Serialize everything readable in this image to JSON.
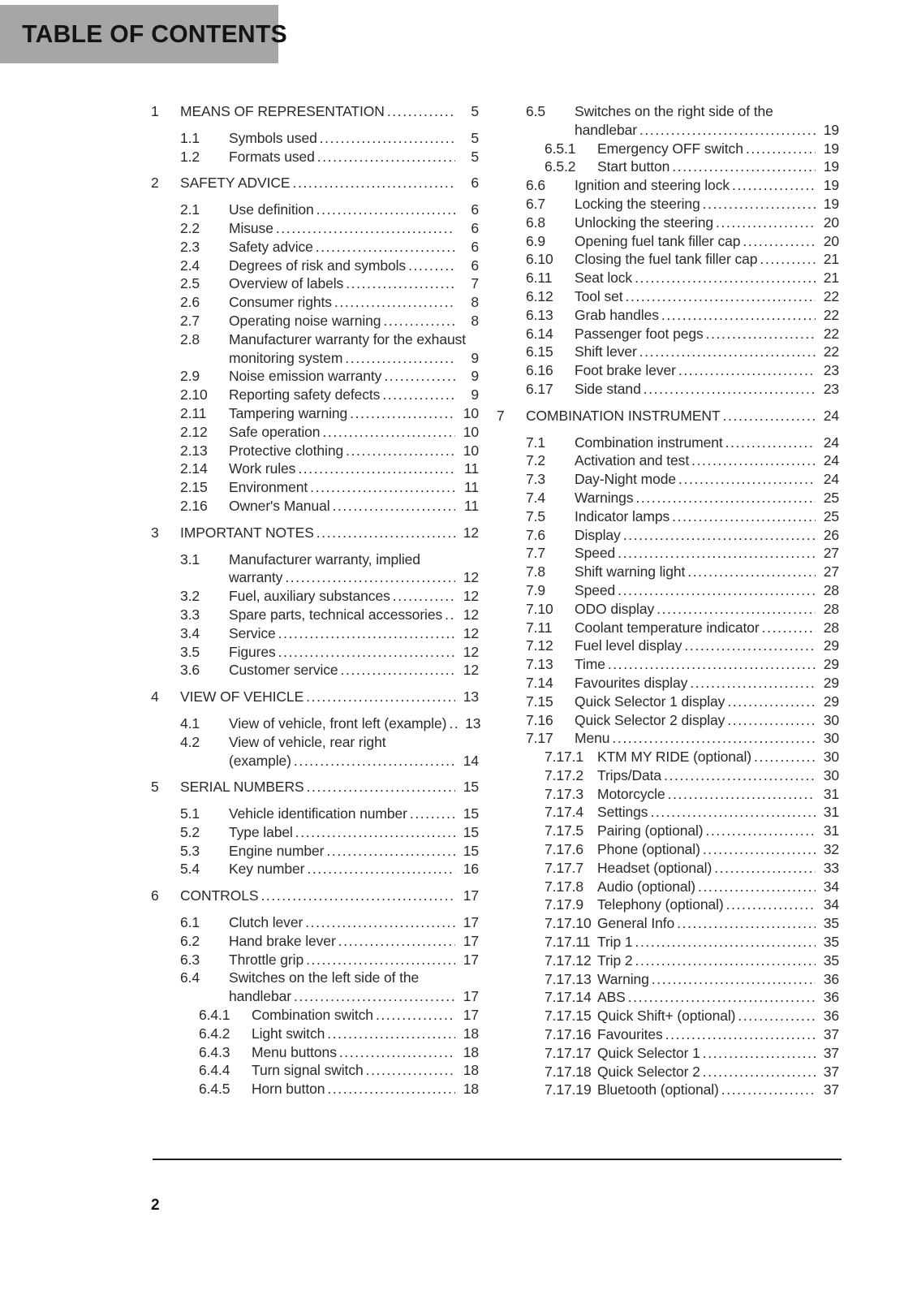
{
  "header": {
    "title": "TABLE OF CONTENTS"
  },
  "footer": {
    "page_number": "2"
  },
  "toc": {
    "columns": [
      {
        "entries": [
          {
            "level": 1,
            "num": "1",
            "lines": [
              "MEANS OF REPRESENTATION"
            ],
            "page": "5"
          },
          {
            "level": 2,
            "num": "1.1",
            "lines": [
              "Symbols used"
            ],
            "page": "5"
          },
          {
            "level": 2,
            "num": "1.2",
            "lines": [
              "Formats used"
            ],
            "page": "5"
          },
          {
            "level": 1,
            "num": "2",
            "lines": [
              "SAFETY ADVICE"
            ],
            "page": "6"
          },
          {
            "level": 2,
            "num": "2.1",
            "lines": [
              "Use definition"
            ],
            "page": "6"
          },
          {
            "level": 2,
            "num": "2.2",
            "lines": [
              "Misuse"
            ],
            "page": "6"
          },
          {
            "level": 2,
            "num": "2.3",
            "lines": [
              "Safety advice"
            ],
            "page": "6"
          },
          {
            "level": 2,
            "num": "2.4",
            "lines": [
              "Degrees of risk and symbols"
            ],
            "page": "6"
          },
          {
            "level": 2,
            "num": "2.5",
            "lines": [
              "Overview of labels"
            ],
            "page": "7"
          },
          {
            "level": 2,
            "num": "2.6",
            "lines": [
              "Consumer rights"
            ],
            "page": "8"
          },
          {
            "level": 2,
            "num": "2.7",
            "lines": [
              "Operating noise warning"
            ],
            "page": "8"
          },
          {
            "level": 2,
            "num": "2.8",
            "lines": [
              "Manufacturer warranty for the exhaust",
              "monitoring system"
            ],
            "page": "9"
          },
          {
            "level": 2,
            "num": "2.9",
            "lines": [
              "Noise emission warranty"
            ],
            "page": "9"
          },
          {
            "level": 2,
            "num": "2.10",
            "lines": [
              "Reporting safety defects"
            ],
            "page": "9"
          },
          {
            "level": 2,
            "num": "2.11",
            "lines": [
              "Tampering warning"
            ],
            "page": "10"
          },
          {
            "level": 2,
            "num": "2.12",
            "lines": [
              "Safe operation"
            ],
            "page": "10"
          },
          {
            "level": 2,
            "num": "2.13",
            "lines": [
              "Protective clothing"
            ],
            "page": "10"
          },
          {
            "level": 2,
            "num": "2.14",
            "lines": [
              "Work rules"
            ],
            "page": "11"
          },
          {
            "level": 2,
            "num": "2.15",
            "lines": [
              "Environment"
            ],
            "page": "11"
          },
          {
            "level": 2,
            "num": "2.16",
            "lines": [
              "Owner's Manual"
            ],
            "page": "11"
          },
          {
            "level": 1,
            "num": "3",
            "lines": [
              "IMPORTANT NOTES"
            ],
            "page": "12"
          },
          {
            "level": 2,
            "num": "3.1",
            "lines": [
              "Manufacturer warranty, implied",
              "warranty"
            ],
            "page": "12"
          },
          {
            "level": 2,
            "num": "3.2",
            "lines": [
              "Fuel, auxiliary substances"
            ],
            "page": "12"
          },
          {
            "level": 2,
            "num": "3.3",
            "lines": [
              "Spare parts, technical accessories"
            ],
            "page": "12"
          },
          {
            "level": 2,
            "num": "3.4",
            "lines": [
              "Service"
            ],
            "page": "12"
          },
          {
            "level": 2,
            "num": "3.5",
            "lines": [
              "Figures"
            ],
            "page": "12"
          },
          {
            "level": 2,
            "num": "3.6",
            "lines": [
              "Customer service"
            ],
            "page": "12"
          },
          {
            "level": 1,
            "num": "4",
            "lines": [
              "VIEW OF VEHICLE"
            ],
            "page": "13"
          },
          {
            "level": 2,
            "num": "4.1",
            "lines": [
              "View of vehicle, front left (example)"
            ],
            "page": "13"
          },
          {
            "level": 2,
            "num": "4.2",
            "lines": [
              "View of vehicle, rear right",
              "(example)"
            ],
            "page": "14"
          },
          {
            "level": 1,
            "num": "5",
            "lines": [
              "SERIAL NUMBERS"
            ],
            "page": "15"
          },
          {
            "level": 2,
            "num": "5.1",
            "lines": [
              "Vehicle identification number"
            ],
            "page": "15"
          },
          {
            "level": 2,
            "num": "5.2",
            "lines": [
              "Type label"
            ],
            "page": "15"
          },
          {
            "level": 2,
            "num": "5.3",
            "lines": [
              "Engine number"
            ],
            "page": "15"
          },
          {
            "level": 2,
            "num": "5.4",
            "lines": [
              "Key number"
            ],
            "page": "16"
          },
          {
            "level": 1,
            "num": "6",
            "lines": [
              "CONTROLS"
            ],
            "page": "17"
          },
          {
            "level": 2,
            "num": "6.1",
            "lines": [
              "Clutch lever"
            ],
            "page": "17"
          },
          {
            "level": 2,
            "num": "6.2",
            "lines": [
              "Hand brake lever"
            ],
            "page": "17"
          },
          {
            "level": 2,
            "num": "6.3",
            "lines": [
              "Throttle grip"
            ],
            "page": "17"
          },
          {
            "level": 2,
            "num": "6.4",
            "lines": [
              "Switches on the left side of the",
              "handlebar"
            ],
            "page": "17"
          },
          {
            "level": 3,
            "num": "6.4.1",
            "lines": [
              "Combination switch"
            ],
            "page": "17"
          },
          {
            "level": 3,
            "num": "6.4.2",
            "lines": [
              "Light switch"
            ],
            "page": "18"
          },
          {
            "level": 3,
            "num": "6.4.3",
            "lines": [
              "Menu buttons"
            ],
            "page": "18"
          },
          {
            "level": 3,
            "num": "6.4.4",
            "lines": [
              "Turn signal switch"
            ],
            "page": "18"
          },
          {
            "level": 3,
            "num": "6.4.5",
            "lines": [
              "Horn button"
            ],
            "page": "18"
          }
        ]
      },
      {
        "entries": [
          {
            "level": 2,
            "num": "6.5",
            "lines": [
              "Switches on the right side of the",
              "handlebar"
            ],
            "page": "19"
          },
          {
            "level": 3,
            "num": "6.5.1",
            "lines": [
              "Emergency OFF switch"
            ],
            "page": "19"
          },
          {
            "level": 3,
            "num": "6.5.2",
            "lines": [
              "Start button"
            ],
            "page": "19"
          },
          {
            "level": 2,
            "num": "6.6",
            "lines": [
              "Ignition and steering lock"
            ],
            "page": "19"
          },
          {
            "level": 2,
            "num": "6.7",
            "lines": [
              "Locking the steering"
            ],
            "page": "19"
          },
          {
            "level": 2,
            "num": "6.8",
            "lines": [
              "Unlocking the steering"
            ],
            "page": "20"
          },
          {
            "level": 2,
            "num": "6.9",
            "lines": [
              "Opening fuel tank filler cap"
            ],
            "page": "20"
          },
          {
            "level": 2,
            "num": "6.10",
            "lines": [
              "Closing the fuel tank filler cap"
            ],
            "page": "21"
          },
          {
            "level": 2,
            "num": "6.11",
            "lines": [
              "Seat lock"
            ],
            "page": "21"
          },
          {
            "level": 2,
            "num": "6.12",
            "lines": [
              "Tool set"
            ],
            "page": "22"
          },
          {
            "level": 2,
            "num": "6.13",
            "lines": [
              "Grab handles"
            ],
            "page": "22"
          },
          {
            "level": 2,
            "num": "6.14",
            "lines": [
              "Passenger foot pegs"
            ],
            "page": "22"
          },
          {
            "level": 2,
            "num": "6.15",
            "lines": [
              "Shift lever"
            ],
            "page": "22"
          },
          {
            "level": 2,
            "num": "6.16",
            "lines": [
              "Foot brake lever"
            ],
            "page": "23"
          },
          {
            "level": 2,
            "num": "6.17",
            "lines": [
              "Side stand"
            ],
            "page": "23"
          },
          {
            "level": 1,
            "num": "7",
            "lines": [
              "COMBINATION INSTRUMENT"
            ],
            "page": "24"
          },
          {
            "level": 2,
            "num": "7.1",
            "lines": [
              "Combination instrument"
            ],
            "page": "24"
          },
          {
            "level": 2,
            "num": "7.2",
            "lines": [
              "Activation and test"
            ],
            "page": "24"
          },
          {
            "level": 2,
            "num": "7.3",
            "lines": [
              "Day-Night mode"
            ],
            "page": "24"
          },
          {
            "level": 2,
            "num": "7.4",
            "lines": [
              "Warnings"
            ],
            "page": "25"
          },
          {
            "level": 2,
            "num": "7.5",
            "lines": [
              "Indicator lamps"
            ],
            "page": "25"
          },
          {
            "level": 2,
            "num": "7.6",
            "lines": [
              "Display"
            ],
            "page": "26"
          },
          {
            "level": 2,
            "num": "7.7",
            "lines": [
              "Speed"
            ],
            "page": "27"
          },
          {
            "level": 2,
            "num": "7.8",
            "lines": [
              "Shift warning light"
            ],
            "page": "27"
          },
          {
            "level": 2,
            "num": "7.9",
            "lines": [
              "Speed"
            ],
            "page": "28"
          },
          {
            "level": 2,
            "num": "7.10",
            "lines": [
              "ODO display"
            ],
            "page": "28"
          },
          {
            "level": 2,
            "num": "7.11",
            "lines": [
              "Coolant temperature indicator"
            ],
            "page": "28"
          },
          {
            "level": 2,
            "num": "7.12",
            "lines": [
              "Fuel level display"
            ],
            "page": "29"
          },
          {
            "level": 2,
            "num": "7.13",
            "lines": [
              "Time"
            ],
            "page": "29"
          },
          {
            "level": 2,
            "num": "7.14",
            "lines": [
              "Favourites display"
            ],
            "page": "29"
          },
          {
            "level": 2,
            "num": "7.15",
            "lines": [
              "Quick Selector 1 display"
            ],
            "page": "29"
          },
          {
            "level": 2,
            "num": "7.16",
            "lines": [
              "Quick Selector 2 display"
            ],
            "page": "30"
          },
          {
            "level": 2,
            "num": "7.17",
            "lines": [
              "Menu"
            ],
            "page": "30"
          },
          {
            "level": 3,
            "num": "7.17.1",
            "lines": [
              "KTM MY RIDE (optional)"
            ],
            "page": "30"
          },
          {
            "level": 3,
            "num": "7.17.2",
            "lines": [
              "Trips/Data"
            ],
            "page": "30"
          },
          {
            "level": 3,
            "num": "7.17.3",
            "lines": [
              "Motorcycle"
            ],
            "page": "31"
          },
          {
            "level": 3,
            "num": "7.17.4",
            "lines": [
              "Settings"
            ],
            "page": "31"
          },
          {
            "level": 3,
            "num": "7.17.5",
            "lines": [
              "Pairing (optional)"
            ],
            "page": "31"
          },
          {
            "level": 3,
            "num": "7.17.6",
            "lines": [
              "Phone (optional)"
            ],
            "page": "32"
          },
          {
            "level": 3,
            "num": "7.17.7",
            "lines": [
              "Headset (optional)"
            ],
            "page": "33"
          },
          {
            "level": 3,
            "num": "7.17.8",
            "lines": [
              "Audio (optional)"
            ],
            "page": "34"
          },
          {
            "level": 3,
            "num": "7.17.9",
            "lines": [
              "Telephony (optional)"
            ],
            "page": "34"
          },
          {
            "level": 3,
            "num": "7.17.10",
            "lines": [
              "General Info"
            ],
            "page": "35"
          },
          {
            "level": 3,
            "num": "7.17.11",
            "lines": [
              "Trip 1"
            ],
            "page": "35"
          },
          {
            "level": 3,
            "num": "7.17.12",
            "lines": [
              "Trip 2"
            ],
            "page": "35"
          },
          {
            "level": 3,
            "num": "7.17.13",
            "lines": [
              "Warning"
            ],
            "page": "36"
          },
          {
            "level": 3,
            "num": "7.17.14",
            "lines": [
              "ABS"
            ],
            "page": "36"
          },
          {
            "level": 3,
            "num": "7.17.15",
            "lines": [
              "Quick Shift+ (optional)"
            ],
            "page": "36"
          },
          {
            "level": 3,
            "num": "7.17.16",
            "lines": [
              "Favourites"
            ],
            "page": "37"
          },
          {
            "level": 3,
            "num": "7.17.17",
            "lines": [
              "Quick Selector 1"
            ],
            "page": "37"
          },
          {
            "level": 3,
            "num": "7.17.18",
            "lines": [
              "Quick Selector 2"
            ],
            "page": "37"
          },
          {
            "level": 3,
            "num": "7.17.19",
            "lines": [
              "Bluetooth (optional)"
            ],
            "page": "37"
          }
        ]
      }
    ]
  }
}
